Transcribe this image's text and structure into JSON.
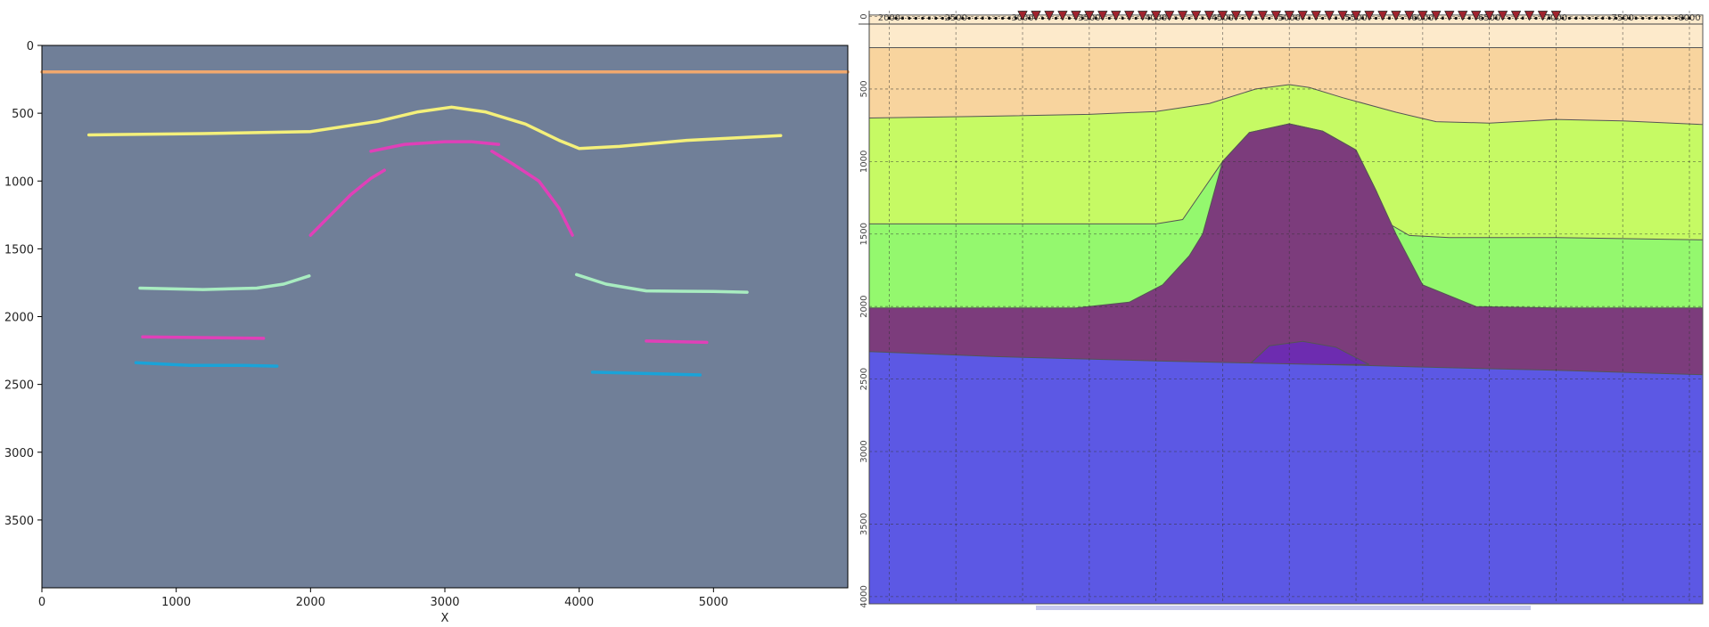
{
  "chart_data": [
    {
      "type": "line",
      "xlabel": "X",
      "ylabel": "",
      "xlim": [
        0,
        6000
      ],
      "ylim": [
        4000,
        0
      ],
      "x_ticks": [
        0,
        1000,
        2000,
        3000,
        4000,
        5000
      ],
      "y_ticks": [
        0,
        500,
        1000,
        1500,
        2000,
        2500,
        3000,
        3500
      ],
      "background_color": "#707f98",
      "series": [
        {
          "color": "#f0a86e",
          "points": [
            [
              0,
              195
            ],
            [
              6000,
              195
            ]
          ]
        },
        {
          "color": "#f4f07a",
          "points": [
            [
              350,
              660
            ],
            [
              1200,
              650
            ],
            [
              2000,
              635
            ],
            [
              2500,
              560
            ],
            [
              2800,
              490
            ],
            [
              3050,
              455
            ],
            [
              3300,
              490
            ],
            [
              3600,
              580
            ],
            [
              3850,
              700
            ],
            [
              4000,
              760
            ],
            [
              4300,
              745
            ],
            [
              4800,
              700
            ],
            [
              5500,
              665
            ]
          ]
        },
        {
          "color": "#e040b8",
          "points": [
            [
              2450,
              780
            ],
            [
              2700,
              730
            ],
            [
              3000,
              710
            ],
            [
              3200,
              710
            ],
            [
              3400,
              730
            ]
          ]
        },
        {
          "color": "#e040b8",
          "points": [
            [
              2000,
              1400
            ],
            [
              2150,
              1250
            ],
            [
              2300,
              1100
            ],
            [
              2450,
              980
            ],
            [
              2550,
              920
            ]
          ]
        },
        {
          "color": "#e040b8",
          "points": [
            [
              3350,
              780
            ],
            [
              3500,
              870
            ],
            [
              3700,
              1000
            ],
            [
              3850,
              1200
            ],
            [
              3950,
              1400
            ]
          ]
        },
        {
          "color": "#a8ecc0",
          "points": [
            [
              730,
              1790
            ],
            [
              1200,
              1800
            ],
            [
              1600,
              1790
            ],
            [
              1800,
              1760
            ],
            [
              1990,
              1700
            ]
          ]
        },
        {
          "color": "#a8ecc0",
          "points": [
            [
              3980,
              1690
            ],
            [
              4200,
              1760
            ],
            [
              4500,
              1810
            ],
            [
              5000,
              1815
            ],
            [
              5250,
              1820
            ]
          ]
        },
        {
          "color": "#e040b8",
          "points": [
            [
              750,
              2150
            ],
            [
              1650,
              2160
            ]
          ]
        },
        {
          "color": "#e040b8",
          "points": [
            [
              4500,
              2180
            ],
            [
              4950,
              2190
            ]
          ]
        },
        {
          "color": "#1aa3d8",
          "points": [
            [
              700,
              2340
            ],
            [
              1100,
              2360
            ],
            [
              1500,
              2360
            ],
            [
              1750,
              2365
            ]
          ]
        },
        {
          "color": "#1aa3d8",
          "points": [
            [
              4100,
              2410
            ],
            [
              4500,
              2420
            ],
            [
              4900,
              2430
            ]
          ]
        }
      ]
    },
    {
      "type": "area",
      "xlim": [
        1850,
        8100
      ],
      "ylim": [
        4050,
        -40
      ],
      "x_ticks": [
        2000,
        2500,
        3000,
        3500,
        4000,
        4500,
        5000,
        5500,
        6000,
        6500,
        7000,
        7500,
        8000
      ],
      "y_ticks": [
        0,
        500,
        1000,
        1500,
        2000,
        2500,
        3000,
        3500,
        4000
      ],
      "grid": true,
      "receivers": {
        "from": 2000,
        "to": 8000,
        "step": 50
      },
      "sources": {
        "from": 3000,
        "to": 7000,
        "step": 100,
        "color": "#a0242e"
      },
      "layers": [
        {
          "color": "#fdeacb",
          "boundary": [
            [
              1850,
              -10
            ],
            [
              8100,
              -10
            ]
          ]
        },
        {
          "color": "#f8d49e",
          "boundary": [
            [
              1850,
              215
            ],
            [
              8100,
              215
            ]
          ]
        },
        {
          "color": "#c6fa64",
          "boundary": [
            [
              1850,
              700
            ],
            [
              2600,
              690
            ],
            [
              3500,
              675
            ],
            [
              4000,
              655
            ],
            [
              4400,
              600
            ],
            [
              4750,
              500
            ],
            [
              5000,
              470
            ],
            [
              5150,
              490
            ],
            [
              5400,
              560
            ],
            [
              5800,
              660
            ],
            [
              6100,
              725
            ],
            [
              6500,
              735
            ],
            [
              7000,
              710
            ],
            [
              7500,
              720
            ],
            [
              8100,
              745
            ]
          ]
        },
        {
          "color": "#94f86e",
          "boundary": [
            [
              1850,
              1430
            ],
            [
              4000,
              1430
            ],
            [
              4200,
              1400
            ],
            [
              4350,
              1200
            ],
            [
              4500,
              1000
            ],
            [
              4700,
              800
            ],
            [
              5000,
              740
            ],
            [
              5250,
              790
            ],
            [
              5500,
              920
            ],
            [
              5650,
              1200
            ],
            [
              5750,
              1430
            ],
            [
              5900,
              1510
            ],
            [
              6200,
              1525
            ],
            [
              7000,
              1525
            ],
            [
              8100,
              1540
            ]
          ]
        },
        {
          "color": "#7c3c7c",
          "boundary": [
            [
              1850,
              2010
            ],
            [
              3400,
              2010
            ],
            [
              3800,
              1970
            ],
            [
              4050,
              1850
            ],
            [
              4250,
              1650
            ],
            [
              4350,
              1500
            ],
            [
              4380,
              1400
            ],
            [
              4500,
              1000
            ],
            [
              4700,
              800
            ],
            [
              5000,
              740
            ],
            [
              5250,
              790
            ],
            [
              5500,
              920
            ],
            [
              5650,
              1200
            ],
            [
              5800,
              1500
            ],
            [
              6000,
              1850
            ],
            [
              6400,
              2000
            ],
            [
              7000,
              2010
            ],
            [
              8100,
              2010
            ]
          ]
        },
        {
          "color": "#6d2cb0",
          "boundary": [
            [
              4700,
              2400
            ],
            [
              4850,
              2270
            ],
            [
              5100,
              2240
            ],
            [
              5350,
              2280
            ],
            [
              5600,
              2400
            ]
          ]
        },
        {
          "color": "#5c58e4",
          "boundary": [
            [
              1850,
              2310
            ],
            [
              2800,
              2345
            ],
            [
              4000,
              2375
            ],
            [
              4750,
              2390
            ],
            [
              5500,
              2405
            ],
            [
              5900,
              2415
            ],
            [
              7000,
              2440
            ],
            [
              8100,
              2470
            ]
          ]
        }
      ]
    }
  ]
}
